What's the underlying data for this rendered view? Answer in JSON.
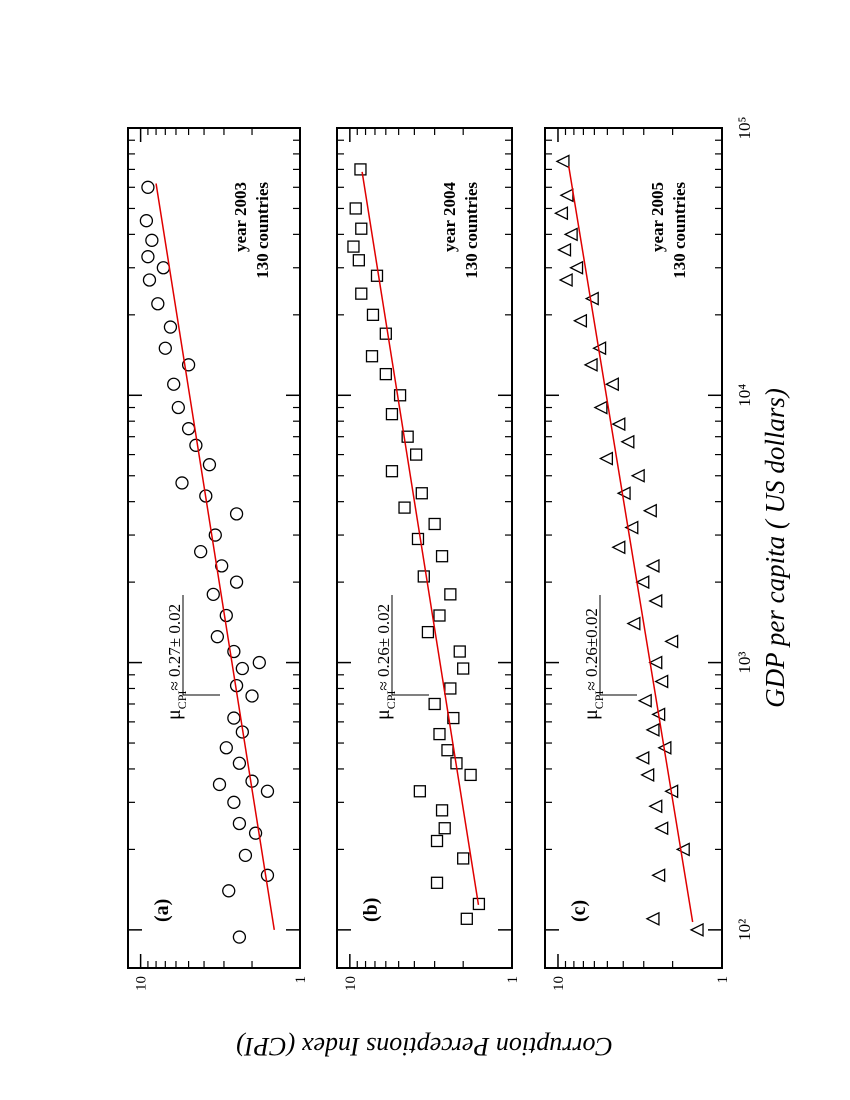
{
  "chart_data": [
    {
      "type": "scatter",
      "panel": "(a)",
      "year": "year 2003",
      "count": "130 countries",
      "marker": "circle",
      "color": "#000000",
      "annotation": {
        "symbol": "μ",
        "sub": "CPI",
        "text": "≈ 0.27± 0.02"
      },
      "x": [
        94,
        140,
        160,
        190,
        230,
        250,
        300,
        330,
        350,
        360,
        420,
        480,
        550,
        620,
        750,
        820,
        950,
        1000,
        1100,
        1250,
        1500,
        1800,
        2000,
        2300,
        2600,
        3000,
        3600,
        4200,
        4700,
        5500,
        6500,
        7500,
        9000,
        11000,
        13000,
        15000,
        18000,
        22000,
        27000,
        30000,
        33000,
        38000,
        45000,
        60000
      ],
      "y": [
        2.4,
        2.8,
        1.6,
        2.2,
        1.9,
        2.4,
        2.6,
        1.6,
        3.2,
        2.0,
        2.4,
        2.9,
        2.3,
        2.6,
        2.0,
        2.5,
        2.3,
        1.8,
        2.6,
        3.3,
        2.9,
        3.5,
        2.5,
        3.1,
        4.2,
        3.4,
        2.5,
        3.9,
        5.5,
        3.7,
        4.5,
        5.0,
        5.8,
        6.2,
        5.0,
        7.0,
        6.5,
        7.8,
        8.8,
        7.2,
        9.0,
        8.5,
        9.2,
        9.0
      ],
      "fit": {
        "x": [
          100,
          62000
        ],
        "y": [
          1.45,
          8.0
        ],
        "color": "#e00000"
      },
      "xlim": [
        72,
        100000
      ],
      "xticks": [
        100,
        1000,
        10000,
        100000
      ],
      "xminor": [
        200,
        300,
        400,
        500,
        600,
        700,
        800,
        900,
        2000,
        3000,
        4000,
        5000,
        6000,
        7000,
        8000,
        9000,
        20000,
        30000,
        40000,
        50000,
        60000,
        70000,
        80000,
        90000
      ],
      "ylim": [
        1,
        12
      ],
      "yticks": [
        1,
        10
      ],
      "yminor": [
        2,
        3,
        4,
        5,
        6,
        7,
        8,
        9
      ],
      "log": true
    },
    {
      "type": "scatter",
      "panel": "(b)",
      "year": "year 2004",
      "count": "130 countries",
      "marker": "square",
      "color": "#000000",
      "annotation": {
        "symbol": "μ",
        "sub": "CPI",
        "text": "≈ 0.26± 0.02"
      },
      "ylabel": "Corruption Perceptions Index (CPI)",
      "x": [
        110,
        125,
        150,
        185,
        215,
        240,
        280,
        330,
        380,
        420,
        470,
        540,
        620,
        700,
        800,
        950,
        1100,
        1300,
        1500,
        1800,
        2100,
        2500,
        2900,
        3300,
        3800,
        4300,
        5200,
        6000,
        7000,
        8500,
        10000,
        12000,
        14000,
        17000,
        20000,
        24000,
        28000,
        32000,
        36000,
        42000,
        50000,
        70000
      ],
      "y": [
        1.9,
        1.6,
        2.9,
        2.0,
        2.9,
        2.6,
        2.7,
        3.7,
        1.8,
        2.2,
        2.5,
        2.8,
        2.3,
        3.0,
        2.4,
        2.0,
        2.1,
        3.3,
        2.8,
        2.4,
        3.5,
        2.7,
        3.8,
        3.0,
        4.6,
        3.6,
        5.5,
        3.9,
        4.4,
        5.5,
        4.9,
        6.0,
        7.3,
        6.0,
        7.2,
        8.5,
        6.8,
        8.8,
        9.5,
        8.5,
        9.2,
        8.6
      ],
      "fit": {
        "x": [
          124,
          68500
        ],
        "y": [
          1.61,
          8.4
        ],
        "color": "#e00000"
      },
      "xlim": [
        72,
        100000
      ],
      "xticks": [
        100,
        1000,
        10000,
        100000
      ],
      "xminor": [
        200,
        300,
        400,
        500,
        600,
        700,
        800,
        900,
        2000,
        3000,
        4000,
        5000,
        6000,
        7000,
        8000,
        9000,
        20000,
        30000,
        40000,
        50000,
        60000,
        70000,
        80000,
        90000
      ],
      "ylim": [
        1,
        12
      ],
      "yticks": [
        1,
        10
      ],
      "yminor": [
        2,
        3,
        4,
        5,
        6,
        7,
        8,
        9
      ],
      "log": true
    },
    {
      "type": "scatter",
      "panel": "(c)",
      "year": "year 2005",
      "count": "130 countries",
      "marker": "triangle",
      "color": "#000000",
      "annotation": {
        "symbol": "μ",
        "sub": "CPI",
        "text": "≈ 0.26±0.02"
      },
      "xlabel": "GDP per capita ( US dollars)",
      "x": [
        100,
        110,
        160,
        200,
        240,
        290,
        330,
        380,
        440,
        480,
        560,
        640,
        720,
        850,
        1000,
        1200,
        1400,
        1700,
        2000,
        2300,
        2700,
        3200,
        3700,
        4300,
        5000,
        5800,
        6700,
        7800,
        9000,
        11000,
        13000,
        15000,
        19000,
        23000,
        27000,
        30000,
        35000,
        40000,
        48000,
        56000,
        75000
      ],
      "y": [
        1.4,
        2.6,
        2.4,
        1.7,
        2.3,
        2.5,
        2.0,
        2.8,
        3.0,
        2.2,
        2.6,
        2.4,
        2.9,
        2.3,
        2.5,
        2.0,
        3.4,
        2.5,
        3.0,
        2.6,
        4.2,
        3.5,
        2.7,
        3.9,
        3.2,
        5.0,
        3.7,
        4.2,
        5.4,
        4.6,
        6.2,
        5.5,
        7.2,
        6.1,
        8.8,
        7.6,
        9.0,
        8.2,
        9.4,
        8.7,
        9.2
      ],
      "fit": {
        "x": [
          107,
          72000
        ],
        "y": [
          1.51,
          8.6
        ],
        "color": "#e00000"
      },
      "xlim": [
        72,
        100000
      ],
      "xticks": [
        {
          "value": 100,
          "label": "10²"
        },
        {
          "value": 1000,
          "label": "10³"
        },
        {
          "value": 10000,
          "label": "10⁴"
        },
        {
          "value": 100000,
          "label": "10⁵"
        }
      ],
      "xminor": [
        200,
        300,
        400,
        500,
        600,
        700,
        800,
        900,
        2000,
        3000,
        4000,
        5000,
        6000,
        7000,
        8000,
        9000,
        20000,
        30000,
        40000,
        50000,
        60000,
        70000,
        80000,
        90000
      ],
      "ylim": [
        1,
        12
      ],
      "yticks": [
        1,
        10
      ],
      "yminor": [
        2,
        3,
        4,
        5,
        6,
        7,
        8,
        9
      ],
      "log": true
    }
  ]
}
